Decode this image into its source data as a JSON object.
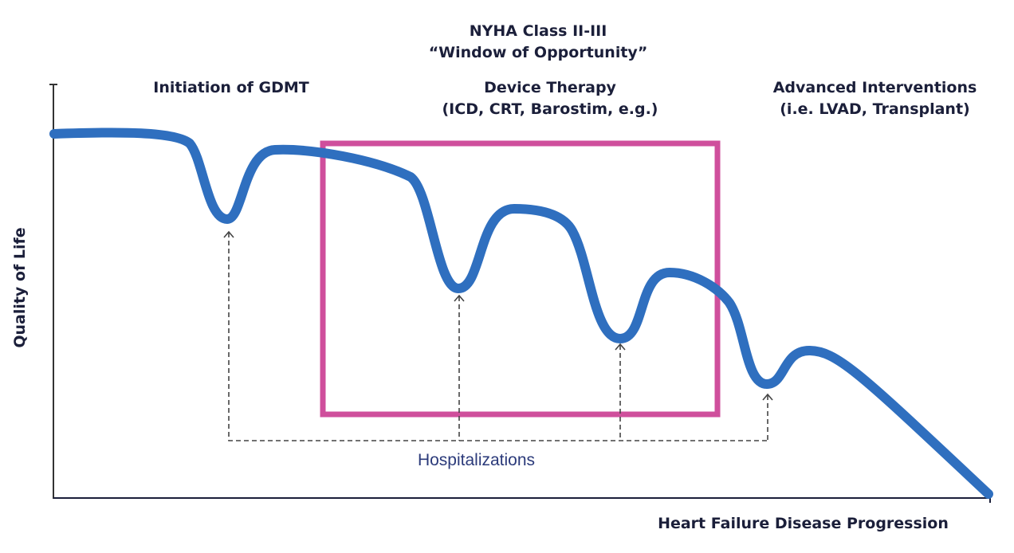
{
  "header": {
    "line1": "NYHA Class II-III",
    "line2": "“Window of Opportunity”"
  },
  "stages": [
    {
      "title": "Initiation of GDMT"
    },
    {
      "title": "Device Therapy",
      "subtitle": "(ICD, CRT, Barostim, e.g.)"
    },
    {
      "title": "Advanced Interventions",
      "subtitle": "(i.e. LVAD, Transplant)"
    }
  ],
  "annotation": "Hospitalizations",
  "axes": {
    "x_label": "Heart Failure Disease Progression",
    "y_label": "Quality of Life"
  },
  "colors": {
    "curve": "#2f6fbf",
    "window_box": "#cf4f9c",
    "text": "#1b1f3a",
    "annotation": "#2b3a7a"
  }
}
